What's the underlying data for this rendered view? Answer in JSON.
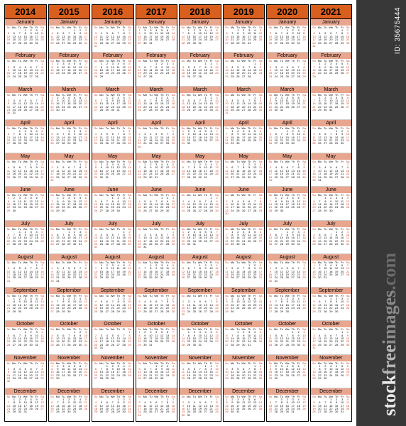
{
  "sidebar": {
    "image_id": "ID: 35675444",
    "watermark_parts": [
      {
        "text": "stock",
        "class": "wm-stock"
      },
      {
        "text": "free",
        "class": "wm-free"
      },
      {
        "text": "images",
        "class": "wm-images"
      },
      {
        "text": ".com",
        "class": "wm-com"
      }
    ],
    "bg_color": "#383838"
  },
  "calendar": {
    "years": [
      2014,
      2015,
      2016,
      2017,
      2018,
      2019,
      2020,
      2021
    ],
    "months": [
      "January",
      "February",
      "March",
      "April",
      "May",
      "June",
      "July",
      "August",
      "September",
      "October",
      "November",
      "December"
    ],
    "dow": [
      "Su",
      "Mo",
      "Tu",
      "We",
      "Th",
      "Fr",
      "Sa"
    ],
    "year_header_bg": "#d95f1e",
    "month_header_bg": "#e8a68f",
    "weekend_color": "#c84020",
    "weekday_color": "#000000",
    "border_color": "#000000",
    "bg_color": "#ffffff"
  }
}
